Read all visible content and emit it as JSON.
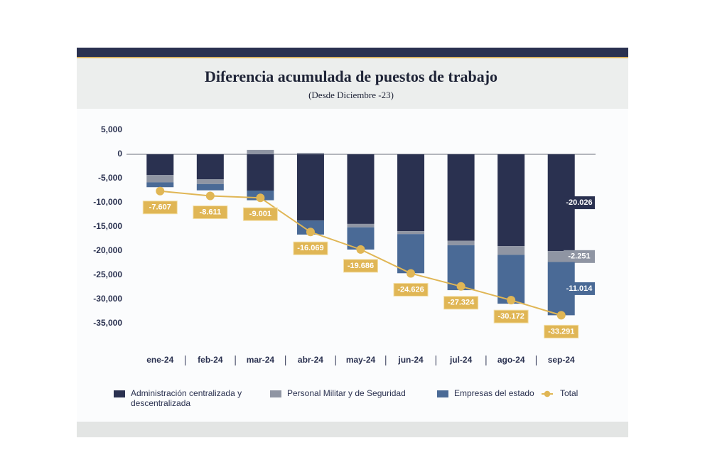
{
  "chart_data": {
    "type": "bar",
    "title": "Diferencia acumulada de puestos de trabajo",
    "subtitle": "(Desde Diciembre -23)",
    "categories": [
      "ene-24",
      "feb-24",
      "mar-24",
      "abr-24",
      "may-24",
      "jun-24",
      "jul-24",
      "ago-24",
      "sep-24"
    ],
    "series": [
      {
        "name": "Administración centralizada y descentralizada",
        "color": "#2a3150",
        "values": [
          -4300,
          -5150,
          -7500,
          -13700,
          -14400,
          -15900,
          -17900,
          -19000,
          -20026
        ],
        "end_label": "-20.026"
      },
      {
        "name": "Personal Militar y de Seguridad",
        "color": "#8f95a3",
        "values": [
          -1500,
          -1000,
          900,
          300,
          -700,
          -600,
          -900,
          -1800,
          -2251
        ],
        "end_label": "-2.251"
      },
      {
        "name": "Empresas del estado",
        "color": "#4a6a96",
        "values": [
          -1000,
          -1300,
          -2000,
          -2900,
          -4600,
          -8100,
          -9300,
          -10100,
          -11014
        ],
        "end_label": "-11.014"
      },
      {
        "name": "Total",
        "type": "line",
        "color": "#e0b655",
        "values": [
          -7607,
          -8611,
          -9001,
          -16069,
          -19686,
          -24626,
          -27324,
          -30172,
          -33291
        ],
        "value_labels": [
          "-7.607",
          "-8.611",
          "-9.001",
          "-16.069",
          "-19.686",
          "-24.626",
          "-27.324",
          "-30.172",
          "-33.291"
        ]
      }
    ],
    "ylim": [
      -35000,
      5000
    ],
    "yticks": [
      {
        "value": 5000,
        "label": "5,000"
      },
      0,
      {
        "value": -5000,
        "label": "-5,000"
      },
      {
        "value": -10000,
        "label": "-10,000"
      },
      {
        "value": -15000,
        "label": "-15,000"
      },
      {
        "value": -20000,
        "label": "-20,000"
      },
      {
        "value": -25000,
        "label": "-25,000"
      },
      {
        "value": -30000,
        "label": "-30,000"
      },
      {
        "value": -35000,
        "label": "-35,000"
      }
    ],
    "grid": false
  }
}
